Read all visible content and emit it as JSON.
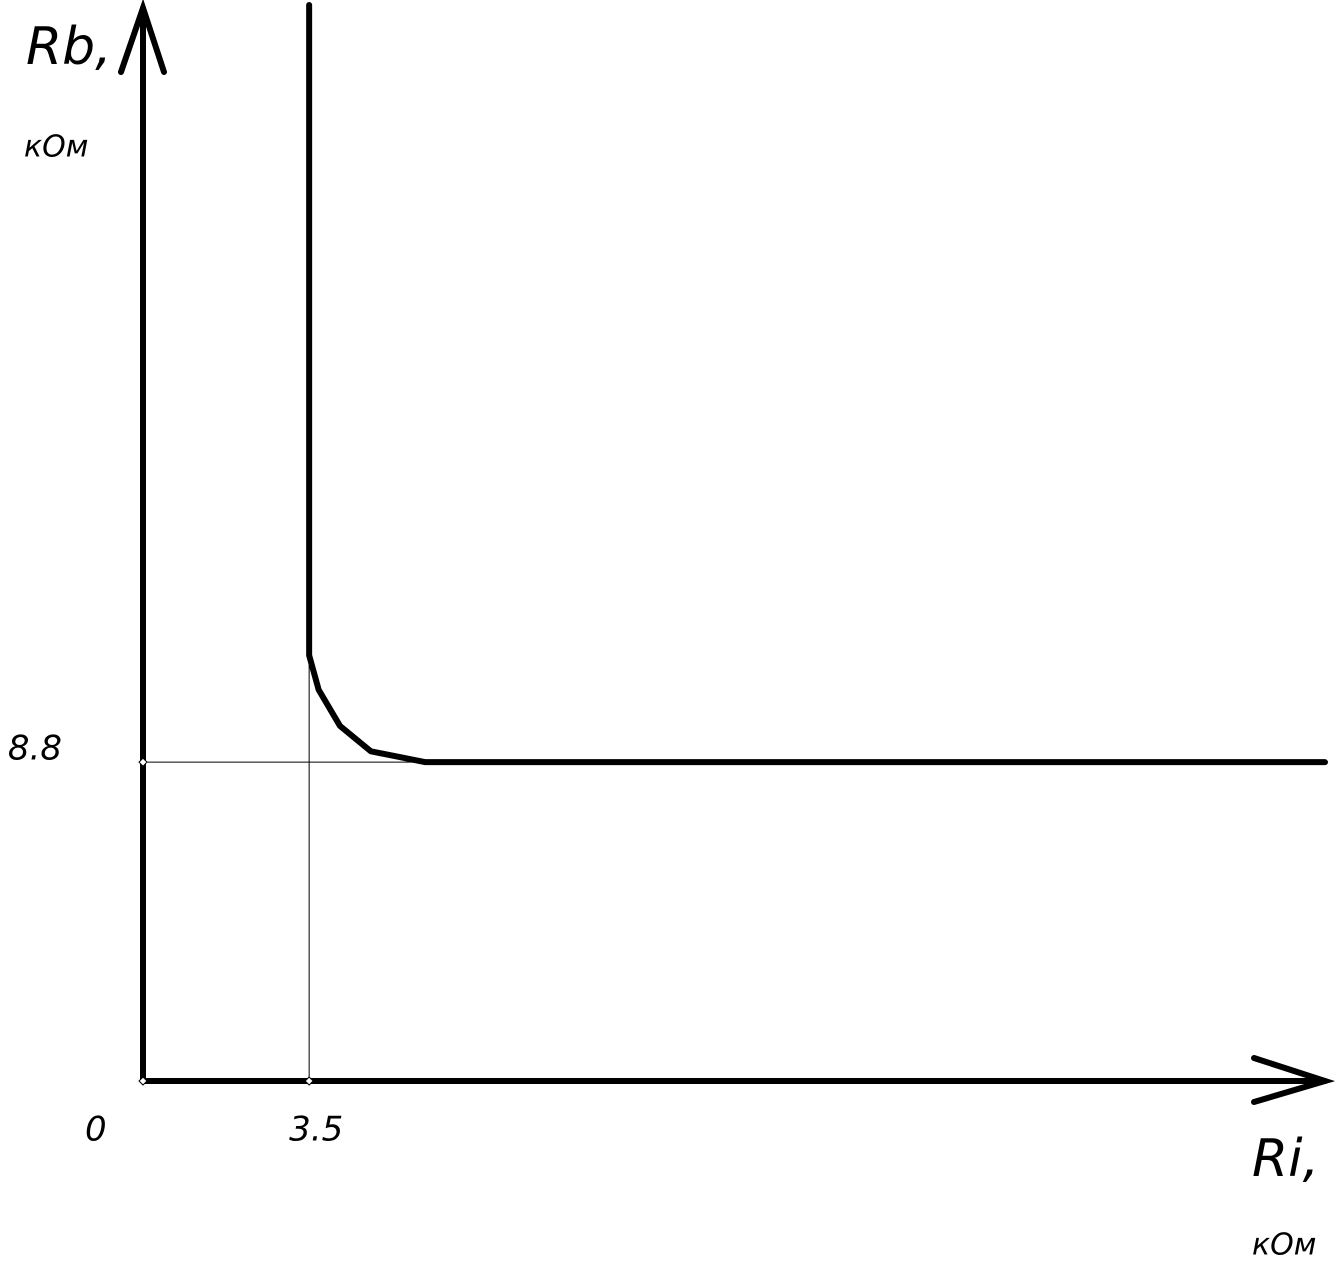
{
  "chart_data": {
    "type": "line",
    "y_label": "Rb,",
    "y_unit": "кОм",
    "x_label": "Ri,",
    "x_unit": "кОм",
    "x": [
      3.5,
      3.5,
      3.7,
      4.15,
      4.8,
      5.95,
      24.9
    ],
    "series": [
      {
        "color": "#000000",
        "values": [
          29.7,
          11.75,
          10.8,
          9.8,
          9.1,
          8.8,
          8.8
        ]
      }
    ],
    "xlim": [
      0,
      24.9
    ],
    "ylim": [
      0,
      29.7
    ],
    "xticks": [
      0,
      3.5
    ],
    "yticks": [
      8.8
    ],
    "grid": true
  }
}
